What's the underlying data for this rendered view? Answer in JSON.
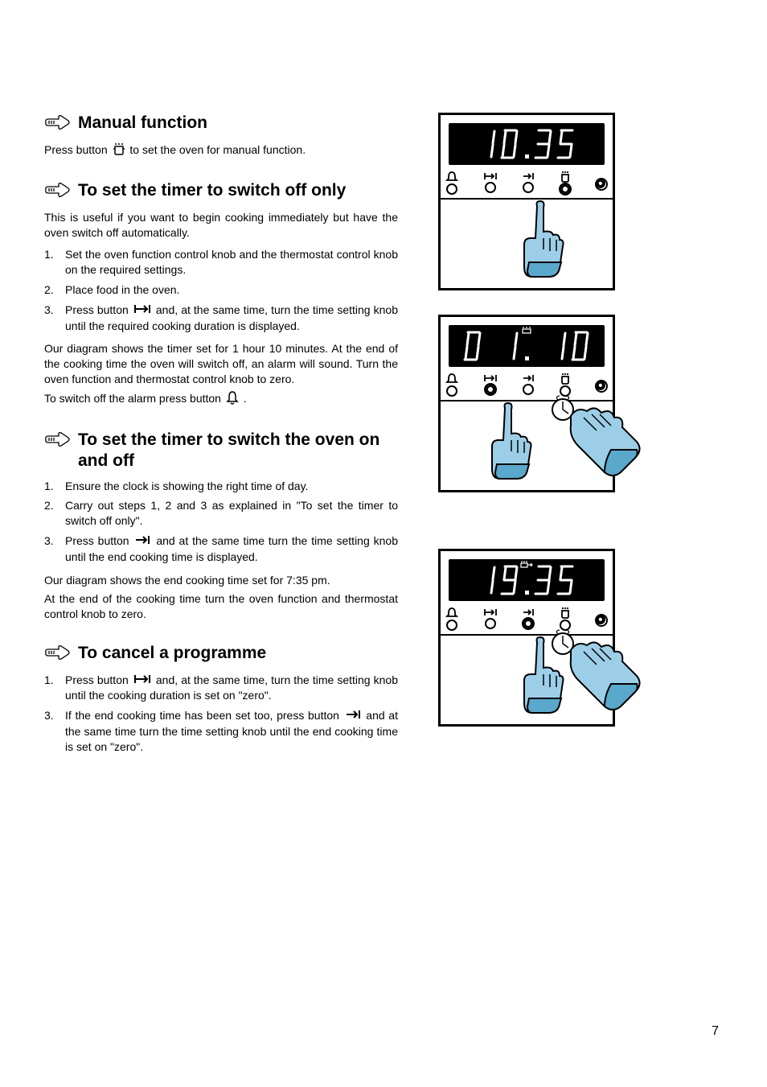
{
  "page_number": "7",
  "sections": {
    "manual": {
      "title": "Manual function",
      "text": "Press button        to set the oven for manual function."
    },
    "switch_off": {
      "title": "To set the timer to switch off only",
      "intro": "This is useful if you want to begin cooking immediately but have the oven switch off automatically.",
      "steps": [
        "Set the oven function control knob and the thermostat control knob on the required settings.",
        "Place food in the oven.",
        "Press button         and, at the same time, turn the time setting knob until the required cooking duration is displayed."
      ],
      "after1": "Our diagram shows the timer set for 1 hour 10 minutes. At the end of the cooking time the oven will switch off, an alarm will sound. Turn the oven function and thermostat control knob to zero.",
      "after2": "To switch off the alarm press button        ."
    },
    "on_off": {
      "title": "To set the timer to switch the oven on and off",
      "steps": [
        "Ensure the clock is showing the right time of day.",
        "Carry out steps 1, 2 and 3 as explained in \"To set the timer to switch off only\".",
        "Press button          and at the same time turn the time setting knob until the end cooking time is displayed."
      ],
      "after1": "Our diagram shows the end cooking time set for 7:35 pm.",
      "after2": "At the end of the cooking time turn the oven function and thermostat control knob to zero."
    },
    "cancel": {
      "title": "To cancel a programme",
      "steps": [
        "Press button          and, at the same time, turn the time setting knob until the cooking duration is set on \"zero\".",
        "If the end cooking time has been set too, press button          and at the same time turn the time setting knob until the end cooking time is set on \"zero\"."
      ]
    }
  },
  "diagrams": {
    "d1": {
      "display": "10.35",
      "indicator": "none",
      "active_button_index": 3,
      "hands": "center"
    },
    "d2": {
      "display": "0 1. 10",
      "indicator": "pot",
      "active_button_index": 1,
      "hands": "left+knob"
    },
    "d3": {
      "display": "19.35",
      "indicator": "pot-arrow",
      "active_button_index": 2,
      "hands": "left+knob"
    }
  },
  "icons": {
    "pot_glyph": "⬚",
    "bell_glyph": "△",
    "arrow_start_end": "|→|",
    "arrow_end": "→|"
  },
  "colors": {
    "hand_fill": "#9dcee8",
    "hand_shadow": "#5aa8cc",
    "digit_color": "#ffffff",
    "panel_bg": "#ffffff",
    "display_bg": "#000000"
  }
}
